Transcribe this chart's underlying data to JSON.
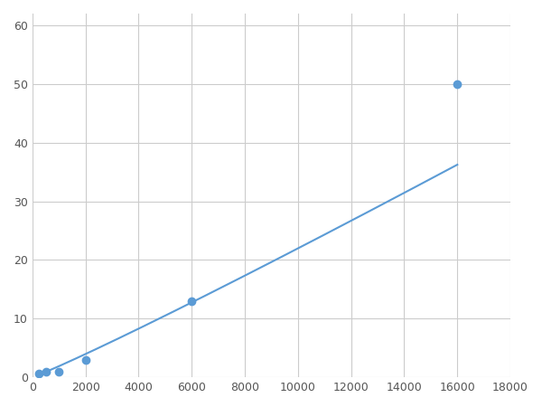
{
  "x": [
    250,
    500,
    1000,
    2000,
    6000,
    16000
  ],
  "y": [
    0.7,
    1.0,
    1.0,
    3.0,
    13.0,
    50.0
  ],
  "line_color": "#5b9bd5",
  "marker_color": "#5b9bd5",
  "marker_size": 36,
  "linewidth": 1.5,
  "xlim": [
    0,
    18000
  ],
  "ylim": [
    0,
    62
  ],
  "xticks": [
    0,
    2000,
    4000,
    6000,
    8000,
    10000,
    12000,
    14000,
    16000,
    18000
  ],
  "yticks": [
    0,
    10,
    20,
    30,
    40,
    50,
    60
  ],
  "grid_color": "#cccccc",
  "background_color": "#ffffff",
  "figure_bg": "#ffffff"
}
